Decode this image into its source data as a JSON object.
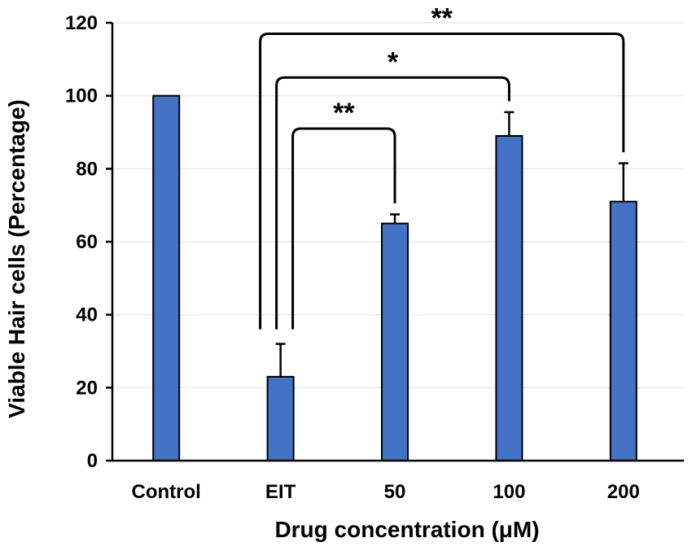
{
  "chart_data": {
    "type": "bar",
    "title": "",
    "xlabel": "Drug concentration (μM)",
    "ylabel": "Viable Hair cells (Percentage)",
    "ylim": [
      0,
      120
    ],
    "yticks": [
      0,
      20,
      40,
      60,
      80,
      100,
      120
    ],
    "grid": true,
    "categories": [
      "Control",
      "EIT",
      "50",
      "100",
      "200"
    ],
    "values": [
      100,
      23,
      65,
      89,
      71
    ],
    "error_plus": [
      0,
      9,
      2.5,
      6.5,
      10.5
    ],
    "bar_color": "#4472C4",
    "significance": [
      {
        "from": "EIT",
        "to": "50",
        "label": "**"
      },
      {
        "from": "EIT",
        "to": "100",
        "label": "*"
      },
      {
        "from": "EIT",
        "to": "200",
        "label": "**"
      }
    ]
  }
}
